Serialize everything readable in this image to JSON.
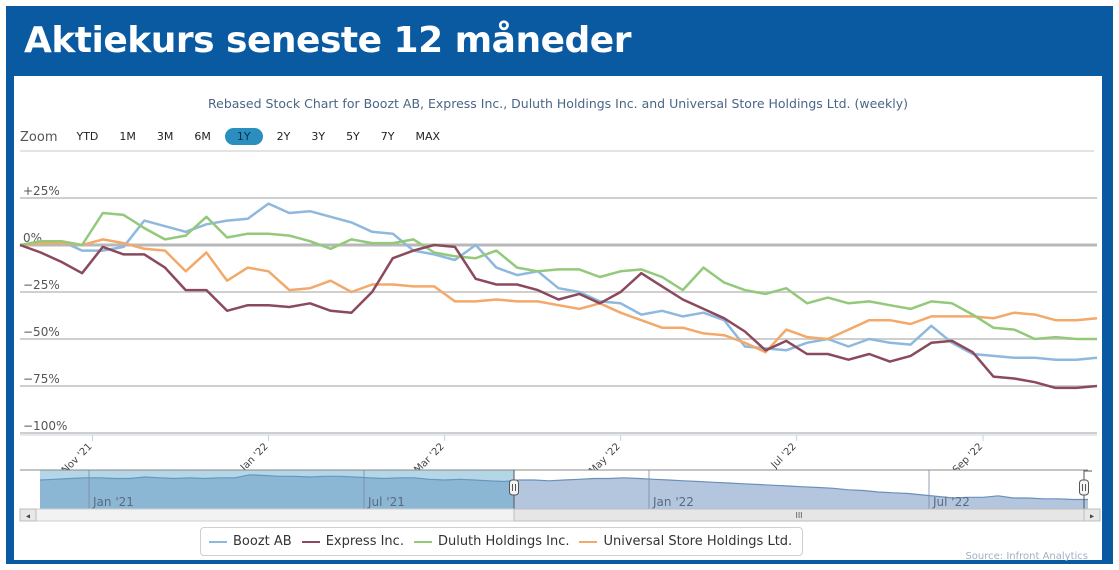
{
  "header": {
    "title": "Aktiekurs seneste 12 måneder"
  },
  "zoom": {
    "label": "Zoom",
    "buttons": [
      "YTD",
      "1M",
      "3M",
      "6M",
      "1Y",
      "2Y",
      "3Y",
      "5Y",
      "7Y",
      "MAX"
    ],
    "active": "1Y"
  },
  "navigator": {
    "labels": [
      "Jan '21",
      "Jul '21",
      "Jan '22",
      "Jul '22"
    ],
    "scroll_left": "◂",
    "scroll_right": "▸",
    "scroll_grip": "III"
  },
  "legend": [
    {
      "name": "Boozt AB",
      "color": "#8fb8de"
    },
    {
      "name": "Express Inc.",
      "color": "#8b4a5c"
    },
    {
      "name": "Duluth Holdings Inc.",
      "color": "#93c97a"
    },
    {
      "name": "Universal Store Holdings Ltd.",
      "color": "#f2a96a"
    }
  ],
  "source": "Source: Infront Analytics",
  "chart_data": {
    "type": "line",
    "title": "Rebased Stock Chart for Boozt AB, Express Inc., Duluth Holdings Inc. and Universal Store Holdings Ltd. (weekly)",
    "xlabel": "",
    "ylabel": "",
    "ylim": [
      -100,
      30
    ],
    "yticks": [
      25,
      0,
      -25,
      -50,
      -75,
      -100
    ],
    "ytick_labels": [
      "+25%",
      "0%",
      "−25%",
      "−50%",
      "−75%",
      "−100%"
    ],
    "xticks": [
      {
        "label": "Nov '21",
        "week": 3.5
      },
      {
        "label": "Jan '22",
        "week": 12
      },
      {
        "label": "Mar '22",
        "week": 20.5
      },
      {
        "label": "May '22",
        "week": 29
      },
      {
        "label": "Jul '22",
        "week": 37.5
      },
      {
        "label": "Sep '22",
        "week": 46.5
      }
    ],
    "grid": true,
    "legend_position": "bottom",
    "x_weeks": 52,
    "series": [
      {
        "name": "Boozt AB",
        "color": "#8fb8de",
        "values": [
          0,
          1,
          2,
          -3,
          -3,
          -1,
          13,
          10,
          7,
          11,
          13,
          14,
          22,
          17,
          18,
          15,
          12,
          7,
          6,
          -3,
          -5,
          -8,
          0,
          -12,
          -16,
          -14,
          -23,
          -25,
          -30,
          -31,
          -37,
          -35,
          -38,
          -36,
          -40,
          -54,
          -55,
          -56,
          -52,
          -50,
          -54,
          -50,
          -52,
          -53,
          -43,
          -52,
          -58,
          -59,
          -60,
          -60,
          -61,
          -61,
          -60
        ]
      },
      {
        "name": "Express Inc.",
        "color": "#8b4a5c",
        "values": [
          0,
          -4,
          -9,
          -15,
          -1,
          -5,
          -5,
          -12,
          -24,
          -24,
          -35,
          -32,
          -32,
          -33,
          -31,
          -35,
          -36,
          -25,
          -7,
          -3,
          0,
          -1,
          -18,
          -21,
          -21,
          -24,
          -29,
          -26,
          -31,
          -25,
          -15,
          -22,
          -29,
          -34,
          -39,
          -46,
          -56,
          -51,
          -58,
          -58,
          -61,
          -58,
          -62,
          -59,
          -52,
          -51,
          -57,
          -70,
          -71,
          -73,
          -76,
          -76,
          -75
        ]
      },
      {
        "name": "Duluth Holdings Inc.",
        "color": "#93c97a",
        "values": [
          0,
          2,
          2,
          0,
          17,
          16,
          9,
          3,
          5,
          15,
          4,
          6,
          6,
          5,
          2,
          -2,
          3,
          1,
          1,
          3,
          -4,
          -6,
          -7,
          -3,
          -12,
          -14,
          -13,
          -13,
          -17,
          -14,
          -13,
          -17,
          -24,
          -12,
          -20,
          -24,
          -26,
          -23,
          -31,
          -28,
          -31,
          -30,
          -32,
          -34,
          -30,
          -31,
          -37,
          -44,
          -45,
          -50,
          -49,
          -50,
          -50
        ]
      },
      {
        "name": "Universal Store Holdings Ltd.",
        "color": "#f2a96a",
        "values": [
          0,
          1,
          1,
          0,
          3,
          1,
          -2,
          -3,
          -14,
          -4,
          -19,
          -12,
          -14,
          -24,
          -23,
          -19,
          -25,
          -21,
          -21,
          -22,
          -22,
          -30,
          -30,
          -29,
          -30,
          -30,
          -32,
          -34,
          -31,
          -36,
          -40,
          -44,
          -44,
          -47,
          -48,
          -52,
          -57,
          -45,
          -49,
          -50,
          -45,
          -40,
          -40,
          -42,
          -38,
          -38,
          -38,
          -39,
          -36,
          -37,
          -40,
          -40,
          -39
        ]
      }
    ],
    "navigator_series": [
      0,
      1,
      2,
      3,
      3,
      2,
      2,
      4,
      3,
      2,
      3,
      2,
      3,
      3,
      7,
      6,
      5,
      5,
      4,
      5,
      5,
      4,
      3,
      2,
      3,
      3,
      1,
      0,
      1,
      0,
      -1,
      -2,
      0,
      0,
      -1,
      0,
      1,
      2,
      2,
      3,
      2,
      1,
      0,
      -1,
      -2,
      -3,
      -4,
      -5,
      -6,
      -7,
      -8,
      -9,
      -10,
      -11,
      -13,
      -14,
      -16,
      -17,
      -18,
      -20,
      -22,
      -24,
      -23,
      -23,
      -21,
      -24,
      -24,
      -25,
      -25,
      -26,
      -26
    ]
  }
}
